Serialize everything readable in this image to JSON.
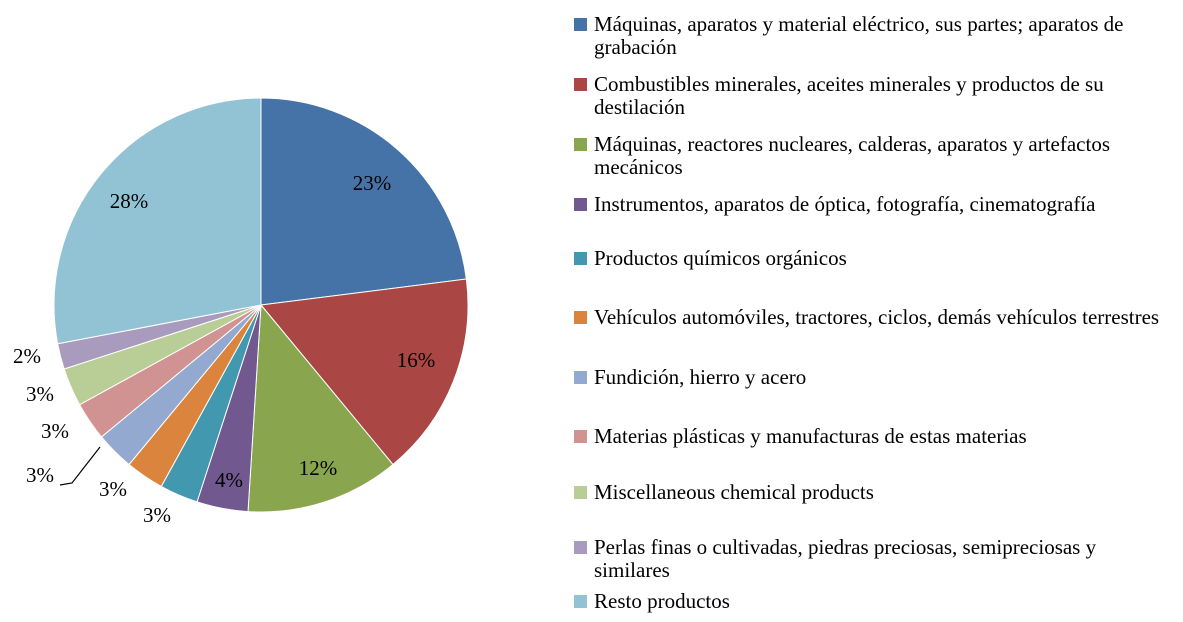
{
  "chart_data": {
    "type": "pie",
    "categories": [
      "Máquinas, aparatos y material eléctrico, sus partes; aparatos de grabación",
      "Combustibles minerales, aceites minerales y productos de su destilación",
      "Máquinas, reactores nucleares, calderas, aparatos y artefactos mecánicos",
      "Instrumentos, aparatos de óptica, fotografía, cinematografía",
      "Productos químicos orgánicos",
      "Vehículos automóviles, tractores, ciclos, demás vehículos terrestres",
      "Fundición, hierro y acero",
      "Materias plásticas y manufacturas de estas materias",
      "Miscellaneous chemical products",
      "Perlas finas o cultivadas, piedras preciosas, semipreciosas y similares",
      "Resto productos"
    ],
    "values": [
      23,
      16,
      12,
      4,
      3,
      3,
      3,
      3,
      3,
      2,
      28
    ],
    "value_labels": [
      "23%",
      "16%",
      "12%",
      "4%",
      "3%",
      "3%",
      "3%",
      "3%",
      "3%",
      "2%",
      "28%"
    ],
    "colors": [
      "#4572A7",
      "#AA4643",
      "#89A54E",
      "#71588F",
      "#4198AF",
      "#DB843D",
      "#93A9CF",
      "#D19392",
      "#B9CD96",
      "#A99BBD",
      "#92C3D4"
    ],
    "legend": "right"
  }
}
